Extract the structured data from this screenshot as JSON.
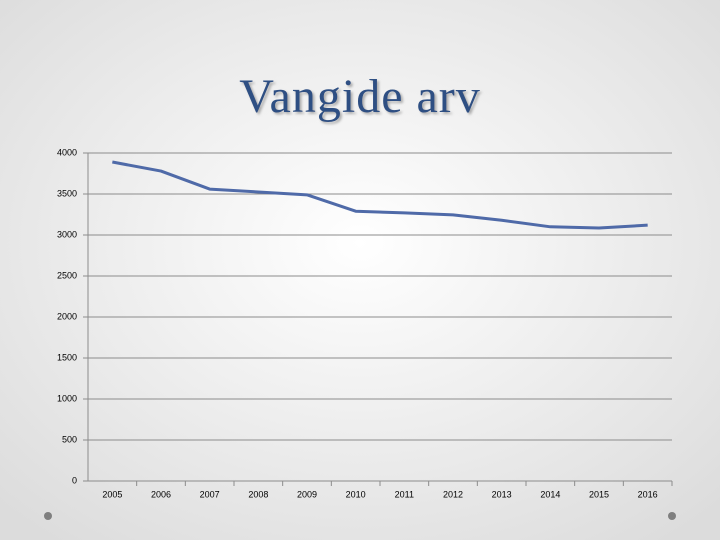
{
  "chart_data": {
    "type": "line",
    "title": "Vangide arv",
    "categories": [
      "2005",
      "2006",
      "2007",
      "2008",
      "2009",
      "2010",
      "2011",
      "2012",
      "2013",
      "2014",
      "2015",
      "2016"
    ],
    "series": [
      {
        "name": null,
        "color": "#4f6aa8",
        "values": [
          3890,
          3780,
          3560,
          3525,
          3490,
          3290,
          3270,
          3245,
          3180,
          3100,
          3085,
          3120
        ]
      }
    ],
    "ylim": [
      0,
      4000
    ],
    "yticks": [
      0,
      500,
      1000,
      1500,
      2000,
      2500,
      3000,
      3500,
      4000
    ],
    "grid": true
  }
}
